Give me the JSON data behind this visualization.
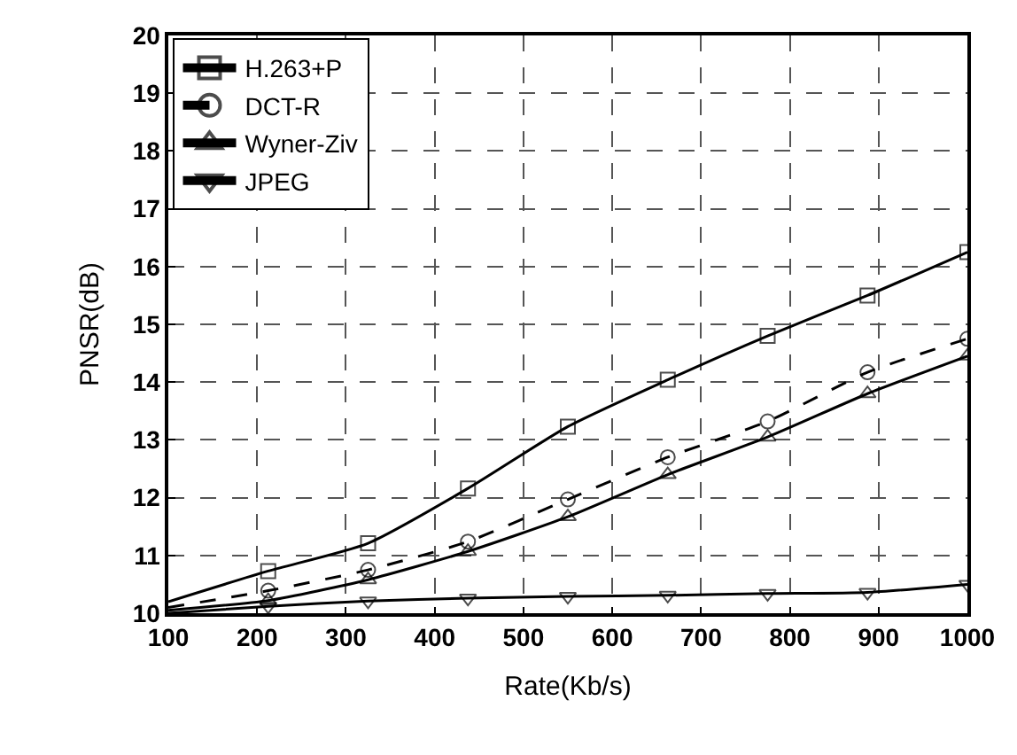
{
  "chart_data": {
    "type": "line",
    "xlabel": "Rate(Kb/s)",
    "ylabel": "PNSR(dB)",
    "x": [
      100,
      212.5,
      325,
      437.5,
      550,
      662.5,
      775,
      887.5,
      1000
    ],
    "series": [
      {
        "name": "H.263+P",
        "color": "#000000",
        "marker": "square",
        "line_style": "solid",
        "values": [
          10.2,
          10.73,
          11.21,
          12.16,
          13.23,
          14.04,
          14.8,
          15.5,
          16.25
        ]
      },
      {
        "name": "DCT-R",
        "color": "#000000",
        "marker": "circle",
        "line_style": "dashed",
        "values": [
          10.1,
          10.39,
          10.75,
          11.24,
          11.97,
          12.7,
          13.32,
          14.17,
          14.75
        ]
      },
      {
        "name": "Wyner-Ziv",
        "color": "#000000",
        "marker": "triangle",
        "line_style": "solid",
        "values": [
          10.05,
          10.22,
          10.58,
          11.07,
          11.67,
          12.4,
          13.05,
          13.8,
          14.45
        ]
      },
      {
        "name": "JPEG",
        "color": "#000000",
        "marker": "triangle-down",
        "line_style": "solid",
        "values": [
          10.0,
          10.12,
          10.21,
          10.26,
          10.29,
          10.31,
          10.34,
          10.36,
          10.5
        ]
      }
    ],
    "xlim": [
      100,
      1000
    ],
    "xticks": [
      100,
      200,
      300,
      400,
      500,
      600,
      700,
      800,
      900,
      1000
    ],
    "ylim": [
      10,
      20
    ],
    "yticks": [
      10,
      11,
      12,
      13,
      14,
      15,
      16,
      17,
      18,
      19,
      20
    ],
    "grid": true,
    "legend": "top left"
  }
}
